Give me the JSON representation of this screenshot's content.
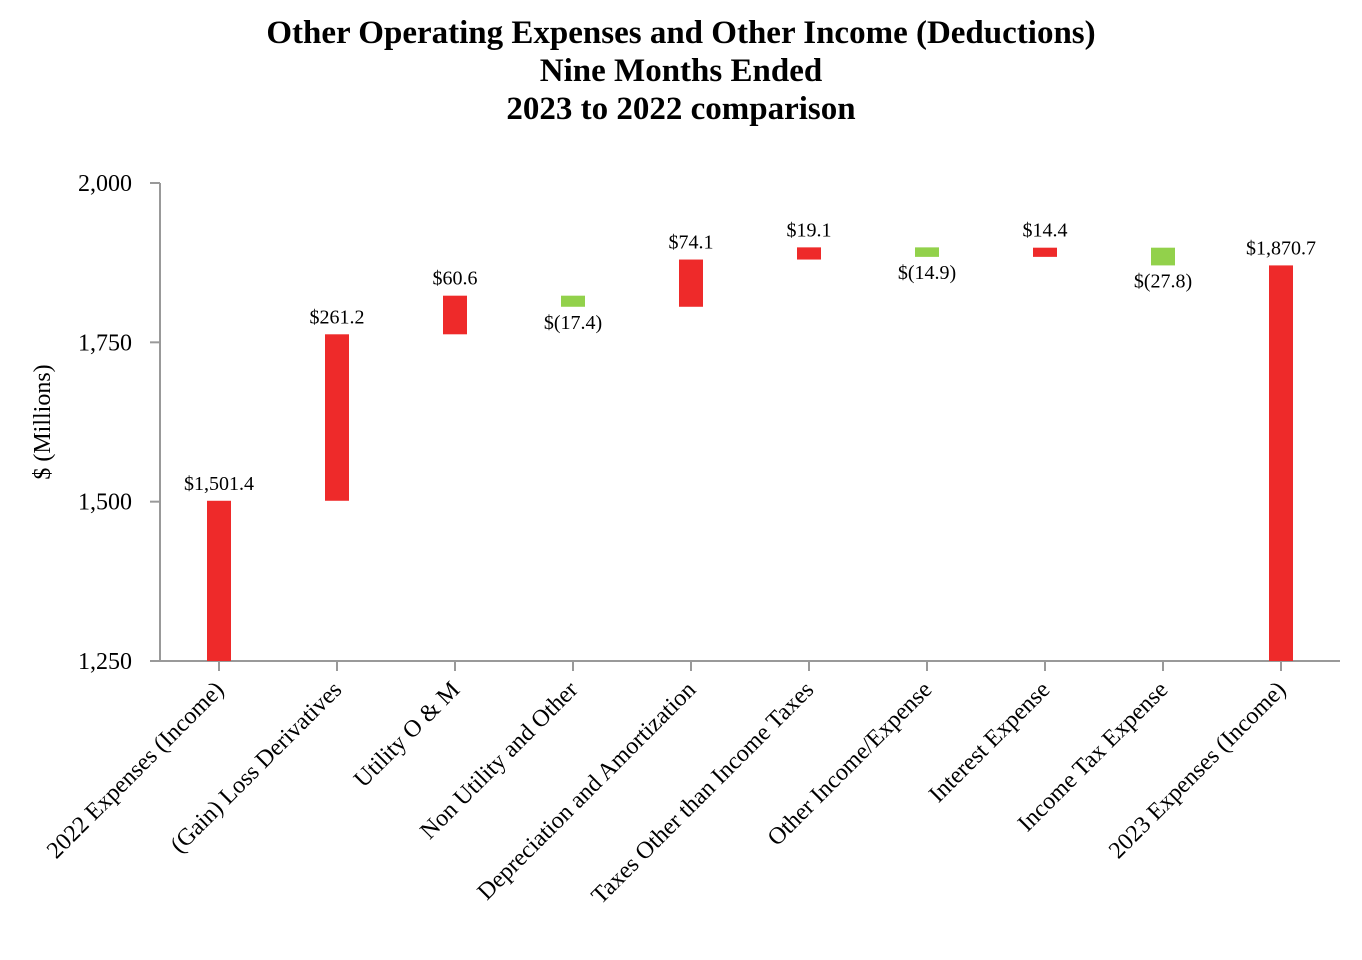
{
  "chart_data": {
    "type": "waterfall",
    "title_lines": [
      "Other Operating Expenses and Other Income (Deductions)",
      "Nine Months Ended",
      "2023 to 2022 comparison"
    ],
    "ylabel": "$ (Millions)",
    "xlabel": "",
    "ylim": [
      1250,
      2000
    ],
    "yticks": [
      1250,
      1500,
      1750,
      2000
    ],
    "ytick_labels": [
      "1,250",
      "1,500",
      "1,750",
      "2,000"
    ],
    "categories": [
      "2022 Expenses (Income)",
      "(Gain) Loss Derivatives",
      "Utility O & M",
      "Non Utility and Other",
      "Depreciation and Amortization",
      "Taxes Other than Income Taxes",
      "Other Income/Expense",
      "Interest Expense",
      "Income Tax Expense",
      "2023 Expenses (Income)"
    ],
    "values": [
      1501.4,
      261.2,
      60.6,
      -17.4,
      74.1,
      19.1,
      -14.9,
      14.4,
      -27.8,
      1870.7
    ],
    "kinds": [
      "total",
      "delta",
      "delta",
      "delta",
      "delta",
      "delta",
      "delta",
      "delta",
      "delta",
      "total"
    ],
    "data_labels": [
      "$1,501.4",
      "$261.2",
      "$60.6",
      "$(17.4)",
      "$74.1",
      "$19.1",
      "$(14.9)",
      "$14.4",
      "$(27.8)",
      "$1,870.7"
    ],
    "colors": {
      "increase": "#ee2a2a",
      "decrease": "#92d14b",
      "axis": "#999999"
    },
    "grid": false,
    "legend": "none"
  }
}
